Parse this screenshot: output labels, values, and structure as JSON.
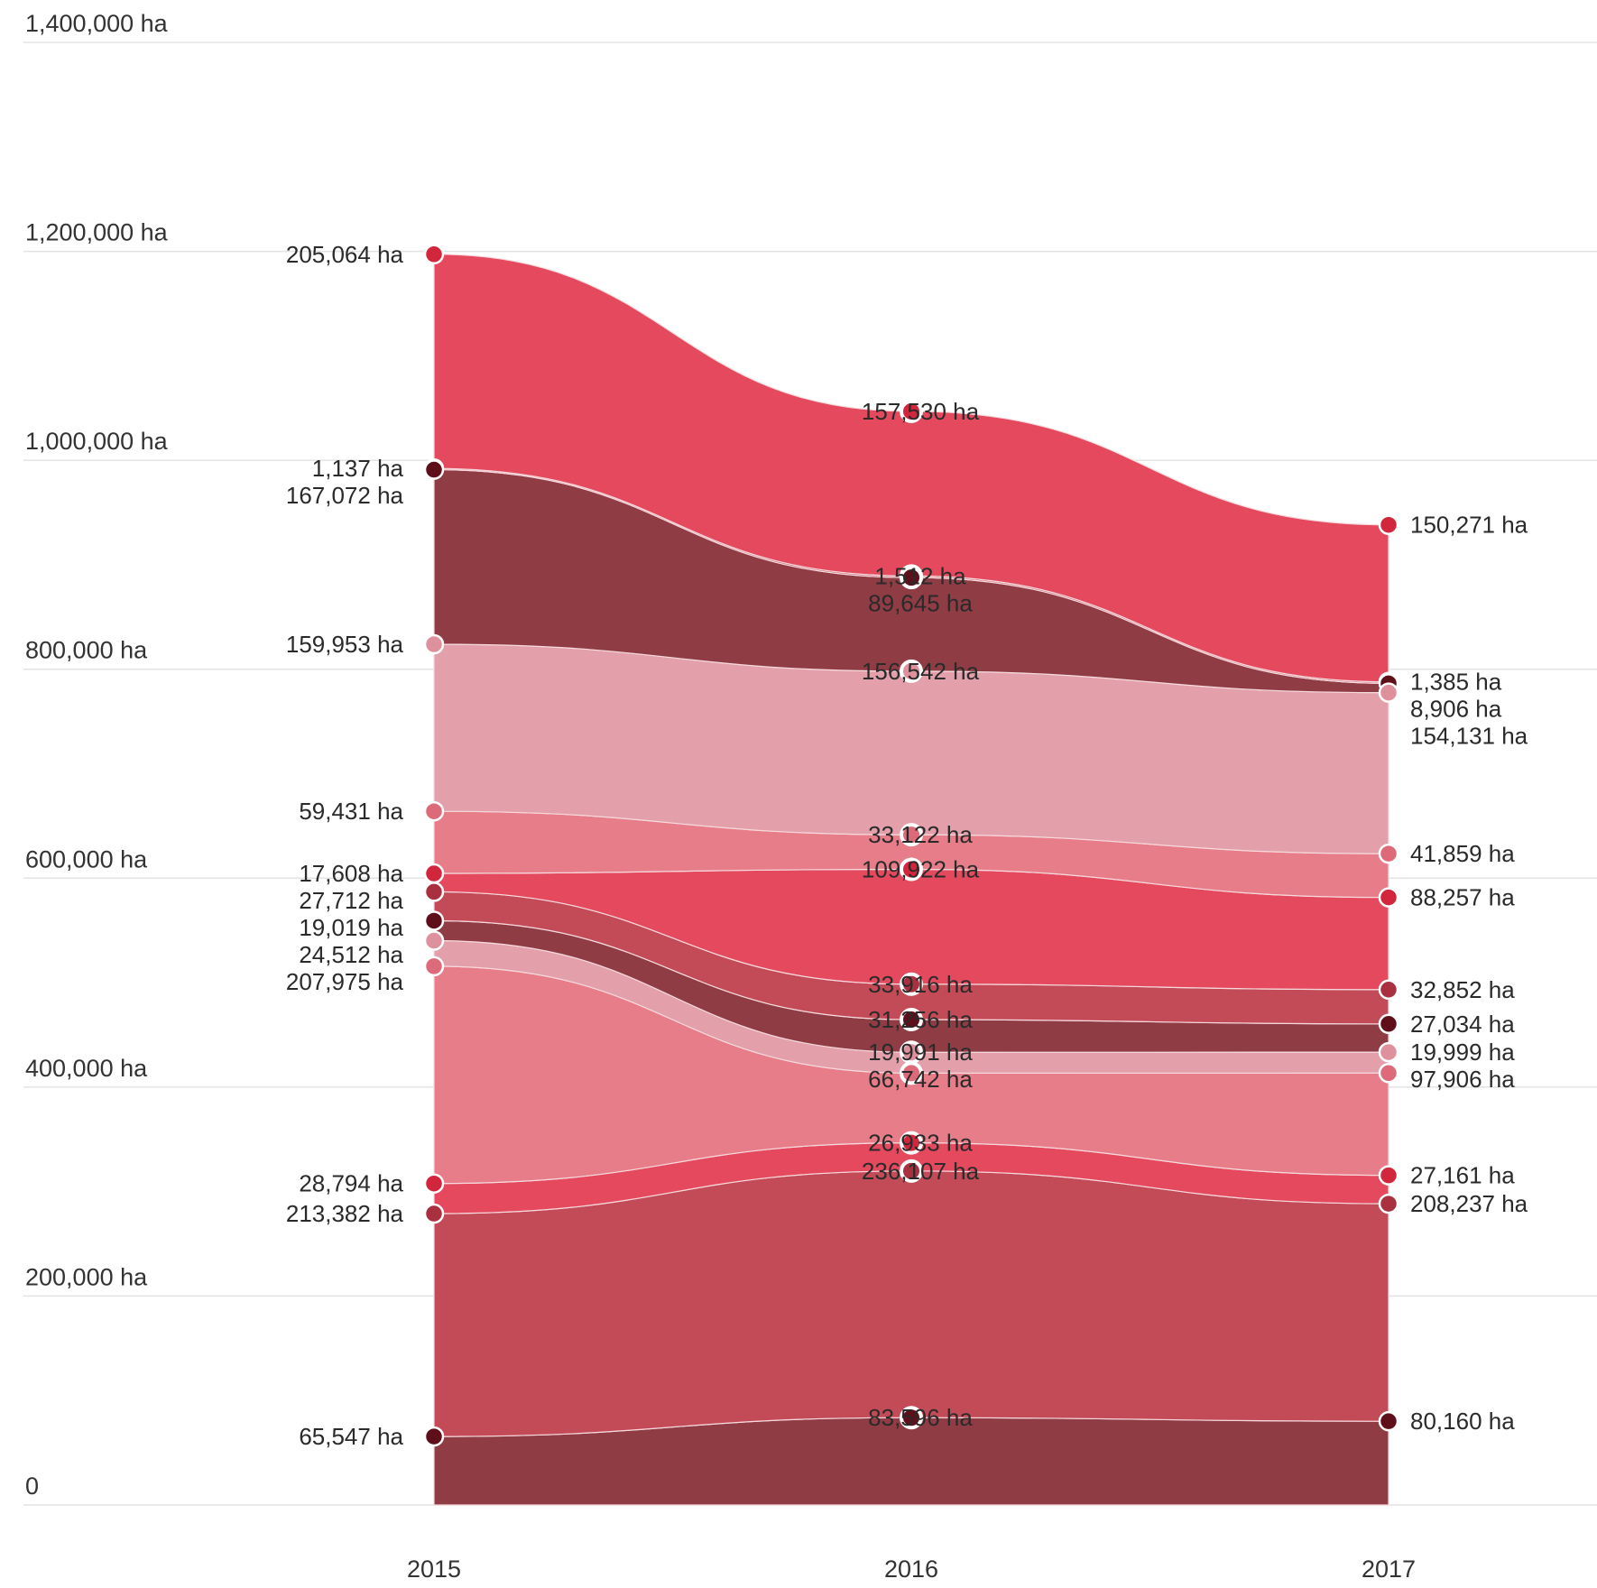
{
  "chart_data": {
    "type": "area",
    "stacked": true,
    "x": [
      "2015",
      "2016",
      "2017"
    ],
    "ylim": [
      0,
      1400000
    ],
    "y_ticks": [
      {
        "value": 0,
        "label": "0"
      },
      {
        "value": 200000,
        "label": "200,000 ha"
      },
      {
        "value": 400000,
        "label": "400,000 ha"
      },
      {
        "value": 600000,
        "label": "600,000 ha"
      },
      {
        "value": 800000,
        "label": "800,000 ha"
      },
      {
        "value": 1000000,
        "label": "1,000,000 ha"
      },
      {
        "value": 1200000,
        "label": "1,200,000 ha"
      },
      {
        "value": 1400000,
        "label": "1,400,000 ha"
      }
    ],
    "grid": true,
    "unit": "ha",
    "series": [
      {
        "color": "#8f3c45",
        "dot": "#5e0f19",
        "values": [
          65547,
          83596,
          80160
        ],
        "labels": [
          "65,547 ha",
          "83,596 ha",
          "80,160 ha"
        ]
      },
      {
        "color": "#c34b57",
        "dot": "#a8303f",
        "values": [
          213382,
          236107,
          208237
        ],
        "labels": [
          "213,382 ha",
          "236,107 ha",
          "208,237 ha"
        ]
      },
      {
        "color": "#e4495e",
        "dot": "#d2263d",
        "values": [
          28794,
          26933,
          27161
        ],
        "labels": [
          "28,794 ha",
          "26,933 ha",
          "27,161 ha"
        ]
      },
      {
        "color": "#e67d89",
        "dot": "#dd6a78",
        "values": [
          207975,
          66742,
          97906
        ],
        "labels": [
          "207,975 ha",
          "66,742 ha",
          "97,906 ha"
        ]
      },
      {
        "color": "#e39faa",
        "dot": "#df909d",
        "values": [
          24512,
          19991,
          19999
        ],
        "labels": [
          "24,512 ha",
          "19,991 ha",
          "19,999 ha"
        ]
      },
      {
        "color": "#8f3c45",
        "dot": "#5e0f19",
        "values": [
          19019,
          31256,
          27034
        ],
        "labels": [
          "19,019 ha",
          "31,256 ha",
          "27,034 ha"
        ]
      },
      {
        "color": "#c34b57",
        "dot": "#a8303f",
        "values": [
          27712,
          33916,
          32852
        ],
        "labels": [
          "27,712 ha",
          "33,916 ha",
          "32,852 ha"
        ]
      },
      {
        "color": "#e4495e",
        "dot": "#d2263d",
        "values": [
          17608,
          109922,
          88257
        ],
        "labels": [
          "17,608 ha",
          "109,922 ha",
          "88,257 ha"
        ]
      },
      {
        "color": "#e67d89",
        "dot": "#dd6a78",
        "values": [
          59431,
          33122,
          41859
        ],
        "labels": [
          "59,431 ha",
          "33,122 ha",
          "41,859 ha"
        ]
      },
      {
        "color": "#e39faa",
        "dot": "#df909d",
        "values": [
          159953,
          156542,
          154131
        ],
        "labels": [
          "159,953 ha",
          "156,542 ha",
          "154,131 ha"
        ]
      },
      {
        "color": "#8f3c45",
        "dot": "#5e0f19",
        "values": [
          167072,
          89645,
          8906
        ],
        "labels": [
          "167,072 ha",
          "89,645 ha",
          "8,906 ha"
        ]
      },
      {
        "color": "#c34b57",
        "dot": "#a8303f",
        "values": [
          1137,
          1512,
          1385
        ],
        "labels": [
          "1,137 ha",
          "1,512 ha",
          "1,385 ha"
        ]
      },
      {
        "color": "#e4495e",
        "dot": "#d2263d",
        "values": [
          205064,
          157530,
          150271
        ],
        "labels": [
          "205,064 ha",
          "157,530 ha",
          "150,271 ha"
        ]
      }
    ]
  }
}
